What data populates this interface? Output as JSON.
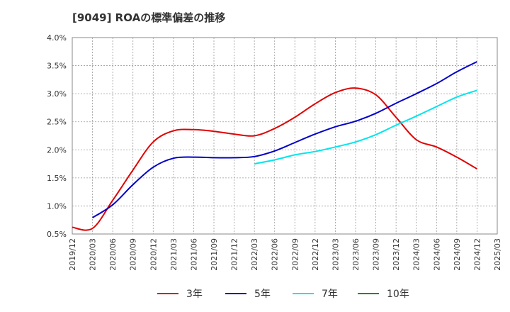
{
  "chart_data": {
    "type": "line",
    "title": "[9049]  ROAの標準偏差の推移",
    "xlabel": "",
    "ylabel": "",
    "x": [
      "2019/12",
      "2020/03",
      "2020/06",
      "2020/09",
      "2020/12",
      "2021/03",
      "2021/06",
      "2021/09",
      "2021/12",
      "2022/03",
      "2022/06",
      "2022/09",
      "2022/12",
      "2023/03",
      "2023/06",
      "2023/09",
      "2023/12",
      "2024/03",
      "2024/06",
      "2024/09",
      "2024/12",
      "2025/03"
    ],
    "ylim": [
      0.5,
      4.0
    ],
    "yticks": [
      "4.0%",
      "3.5%",
      "3.0%",
      "2.5%",
      "2.0%",
      "1.5%",
      "1.0%",
      "0.5%"
    ],
    "grid": true,
    "legend_position": "bottom",
    "series": [
      {
        "name": "3年",
        "color": "#e00000",
        "values": [
          0.62,
          0.6,
          1.1,
          1.64,
          2.14,
          2.34,
          2.36,
          2.33,
          2.28,
          2.25,
          2.38,
          2.58,
          2.82,
          3.02,
          3.1,
          2.98,
          2.58,
          2.18,
          2.05,
          1.87,
          1.66,
          null
        ]
      },
      {
        "name": "5年",
        "color": "#0000c8",
        "values": [
          null,
          0.79,
          1.02,
          1.38,
          1.69,
          1.85,
          1.87,
          1.86,
          1.86,
          1.88,
          1.98,
          2.13,
          2.28,
          2.41,
          2.51,
          2.65,
          2.83,
          3.0,
          3.18,
          3.39,
          3.57,
          null
        ]
      },
      {
        "name": "7年",
        "color": "#00e5ee",
        "values": [
          null,
          null,
          null,
          null,
          null,
          null,
          null,
          null,
          null,
          1.75,
          1.82,
          1.91,
          1.97,
          2.05,
          2.14,
          2.27,
          2.44,
          2.6,
          2.77,
          2.94,
          3.06,
          null
        ]
      },
      {
        "name": "10年",
        "color": "#228b22",
        "values": [
          null,
          null,
          null,
          null,
          null,
          null,
          null,
          null,
          null,
          null,
          null,
          null,
          null,
          null,
          null,
          null,
          null,
          null,
          null,
          null,
          null,
          null
        ]
      }
    ]
  }
}
